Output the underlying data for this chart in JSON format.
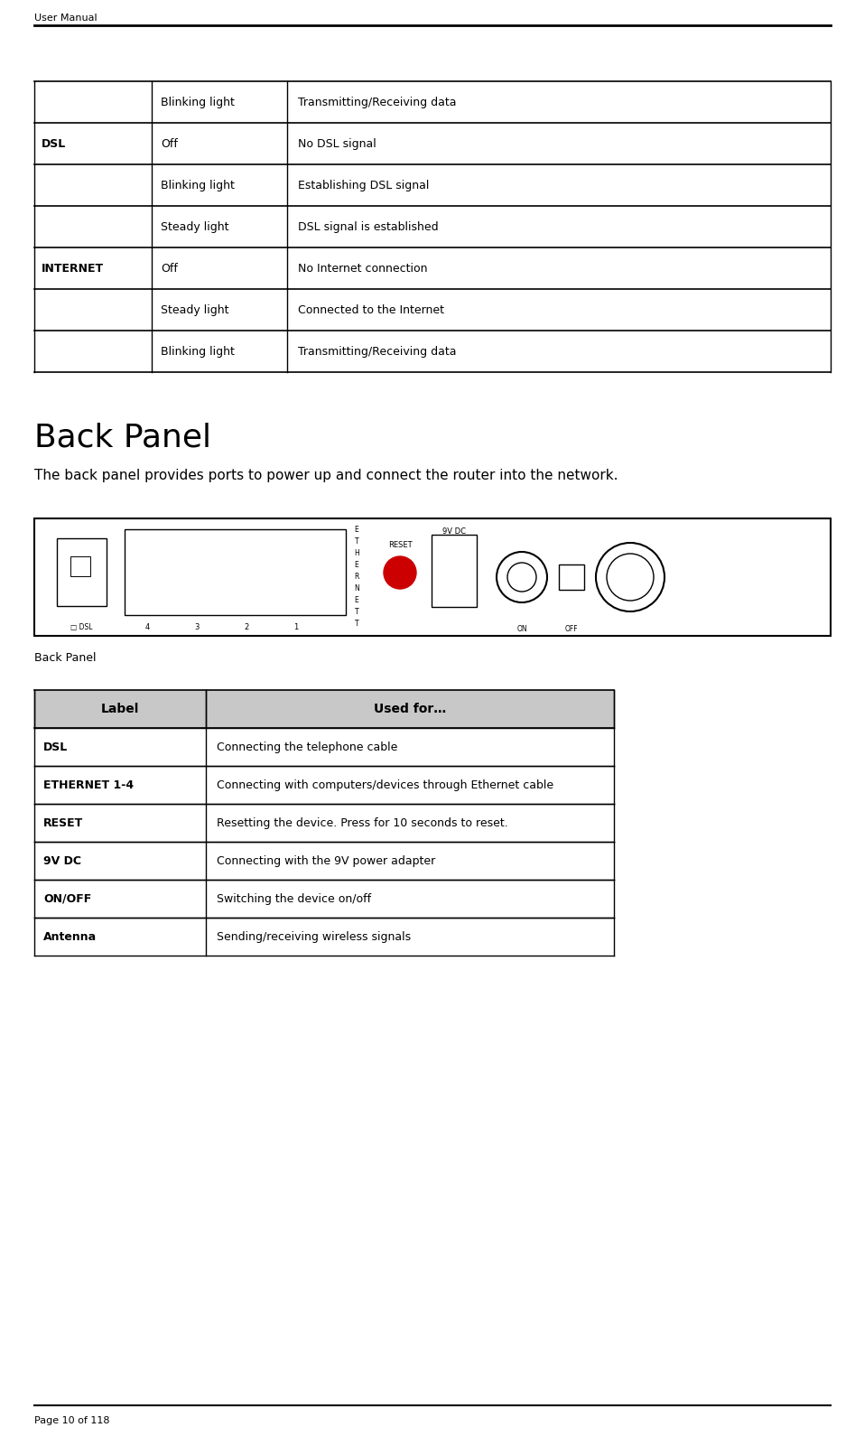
{
  "page_title": "User Manual",
  "page_footer": "Page 10 of 118",
  "top_table": {
    "rows": [
      {
        "col1": "",
        "col2": "Blinking light",
        "col3": "Transmitting/Receiving data",
        "bold_col1": false
      },
      {
        "col1": "DSL",
        "col2": "Off",
        "col3": "No DSL signal",
        "bold_col1": true
      },
      {
        "col1": "",
        "col2": "Blinking light",
        "col3": "Establishing DSL signal",
        "bold_col1": false
      },
      {
        "col1": "",
        "col2": "Steady light",
        "col3": "DSL signal is established",
        "bold_col1": false
      },
      {
        "col1": "INTERNET",
        "col2": "Off",
        "col3": "No Internet connection",
        "bold_col1": true
      },
      {
        "col1": "",
        "col2": "Steady light",
        "col3": "Connected to the Internet",
        "bold_col1": false
      },
      {
        "col1": "",
        "col2": "Blinking light",
        "col3": "Transmitting/Receiving data",
        "bold_col1": false
      }
    ]
  },
  "section_title": "Back Panel",
  "section_body": "The back panel provides ports to power up and connect the router into the network.",
  "back_panel_label": "Back Panel",
  "bottom_table": {
    "header": {
      "col1": "Label",
      "col2": "Used for…"
    },
    "rows": [
      {
        "col1": "DSL",
        "col2": "Connecting the telephone cable",
        "bold_col1": true
      },
      {
        "col1": "ETHERNET 1-4",
        "col2": "Connecting with computers/devices through Ethernet cable",
        "bold_col1": true
      },
      {
        "col1": "RESET",
        "col2": "Resetting the device. Press for 10 seconds to reset.",
        "bold_col1": true
      },
      {
        "col1": "9V DC",
        "col2": "Connecting with the 9V power adapter",
        "bold_col1": true
      },
      {
        "col1": "ON/OFF",
        "col2": "Switching the device on/off",
        "bold_col1": true
      },
      {
        "col1": "Antenna",
        "col2": "Sending/receiving wireless signals",
        "bold_col1": true
      }
    ],
    "header_bg": "#c8c8c8"
  },
  "colors": {
    "black": "#000000",
    "white": "#ffffff",
    "red": "#cc0000"
  }
}
